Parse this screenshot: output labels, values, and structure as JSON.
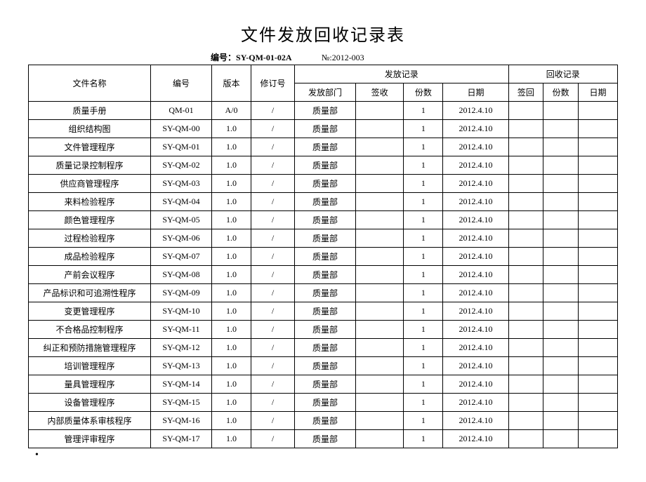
{
  "title": "文件发放回收记录表",
  "subtitle_label": "编号：",
  "subtitle_code": "SY-QM-01-02A",
  "subtitle_no": "№:2012-003",
  "headers": {
    "file_name": "文件名称",
    "code": "编号",
    "version": "版本",
    "revision": "修订号",
    "distribution": "发放记录",
    "recovery": "回收记录",
    "dist_dept": "发放部门",
    "dist_sign": "签收",
    "dist_qty": "份数",
    "dist_date": "日期",
    "rec_sign": "签回",
    "rec_qty": "份数",
    "rec_date": "日期"
  },
  "rows": [
    {
      "name": "质量手册",
      "code": "QM-01",
      "ver": "A/0",
      "rev": "/",
      "dept": "质量部",
      "sign": "",
      "qty": "1",
      "date": "2012.4.10",
      "rsign": "",
      "rqty": "",
      "rdate": ""
    },
    {
      "name": "组织结构图",
      "code": "SY-QM-00",
      "ver": "1.0",
      "rev": "/",
      "dept": "质量部",
      "sign": "",
      "qty": "1",
      "date": "2012.4.10",
      "rsign": "",
      "rqty": "",
      "rdate": ""
    },
    {
      "name": "文件管理程序",
      "code": "SY-QM-01",
      "ver": "1.0",
      "rev": "/",
      "dept": "质量部",
      "sign": "",
      "qty": "1",
      "date": "2012.4.10",
      "rsign": "",
      "rqty": "",
      "rdate": ""
    },
    {
      "name": "质量记录控制程序",
      "code": "SY-QM-02",
      "ver": "1.0",
      "rev": "/",
      "dept": "质量部",
      "sign": "",
      "qty": "1",
      "date": "2012.4.10",
      "rsign": "",
      "rqty": "",
      "rdate": ""
    },
    {
      "name": "供应商管理程序",
      "code": "SY-QM-03",
      "ver": "1.0",
      "rev": "/",
      "dept": "质量部",
      "sign": "",
      "qty": "1",
      "date": "2012.4.10",
      "rsign": "",
      "rqty": "",
      "rdate": ""
    },
    {
      "name": "来料检验程序",
      "code": "SY-QM-04",
      "ver": "1.0",
      "rev": "/",
      "dept": "质量部",
      "sign": "",
      "qty": "1",
      "date": "2012.4.10",
      "rsign": "",
      "rqty": "",
      "rdate": ""
    },
    {
      "name": "颜色管理程序",
      "code": "SY-QM-05",
      "ver": "1.0",
      "rev": "/",
      "dept": "质量部",
      "sign": "",
      "qty": "1",
      "date": "2012.4.10",
      "rsign": "",
      "rqty": "",
      "rdate": ""
    },
    {
      "name": "过程检验程序",
      "code": "SY-QM-06",
      "ver": "1.0",
      "rev": "/",
      "dept": "质量部",
      "sign": "",
      "qty": "1",
      "date": "2012.4.10",
      "rsign": "",
      "rqty": "",
      "rdate": ""
    },
    {
      "name": "成品检验程序",
      "code": "SY-QM-07",
      "ver": "1.0",
      "rev": "/",
      "dept": "质量部",
      "sign": "",
      "qty": "1",
      "date": "2012.4.10",
      "rsign": "",
      "rqty": "",
      "rdate": ""
    },
    {
      "name": "产前会议程序",
      "code": "SY-QM-08",
      "ver": "1.0",
      "rev": "/",
      "dept": "质量部",
      "sign": "",
      "qty": "1",
      "date": "2012.4.10",
      "rsign": "",
      "rqty": "",
      "rdate": ""
    },
    {
      "name": "产品标识和可追溯性程序",
      "code": "SY-QM-09",
      "ver": "1.0",
      "rev": "/",
      "dept": "质量部",
      "sign": "",
      "qty": "1",
      "date": "2012.4.10",
      "rsign": "",
      "rqty": "",
      "rdate": ""
    },
    {
      "name": "变更管理程序",
      "code": "SY-QM-10",
      "ver": "1.0",
      "rev": "/",
      "dept": "质量部",
      "sign": "",
      "qty": "1",
      "date": "2012.4.10",
      "rsign": "",
      "rqty": "",
      "rdate": ""
    },
    {
      "name": "不合格品控制程序",
      "code": "SY-QM-11",
      "ver": "1.0",
      "rev": "/",
      "dept": "质量部",
      "sign": "",
      "qty": "1",
      "date": "2012.4.10",
      "rsign": "",
      "rqty": "",
      "rdate": ""
    },
    {
      "name": "纠正和预防措施管理程序",
      "code": "SY-QM-12",
      "ver": "1.0",
      "rev": "/",
      "dept": "质量部",
      "sign": "",
      "qty": "1",
      "date": "2012.4.10",
      "rsign": "",
      "rqty": "",
      "rdate": ""
    },
    {
      "name": "培训管理程序",
      "code": "SY-QM-13",
      "ver": "1.0",
      "rev": "/",
      "dept": "质量部",
      "sign": "",
      "qty": "1",
      "date": "2012.4.10",
      "rsign": "",
      "rqty": "",
      "rdate": ""
    },
    {
      "name": "量具管理程序",
      "code": "SY-QM-14",
      "ver": "1.0",
      "rev": "/",
      "dept": "质量部",
      "sign": "",
      "qty": "1",
      "date": "2012.4.10",
      "rsign": "",
      "rqty": "",
      "rdate": ""
    },
    {
      "name": "设备管理程序",
      "code": "SY-QM-15",
      "ver": "1.0",
      "rev": "/",
      "dept": "质量部",
      "sign": "",
      "qty": "1",
      "date": "2012.4.10",
      "rsign": "",
      "rqty": "",
      "rdate": ""
    },
    {
      "name": "内部质量体系审核程序",
      "code": "SY-QM-16",
      "ver": "1.0",
      "rev": "/",
      "dept": "质量部",
      "sign": "",
      "qty": "1",
      "date": "2012.4.10",
      "rsign": "",
      "rqty": "",
      "rdate": ""
    },
    {
      "name": "管理评审程序",
      "code": "SY-QM-17",
      "ver": "1.0",
      "rev": "/",
      "dept": "质量部",
      "sign": "",
      "qty": "1",
      "date": "2012.4.10",
      "rsign": "",
      "rqty": "",
      "rdate": ""
    }
  ],
  "styling": {
    "background_color": "#ffffff",
    "border_color": "#000000",
    "title_fontsize": 24,
    "body_fontsize": 12,
    "font_family": "SimSun"
  }
}
